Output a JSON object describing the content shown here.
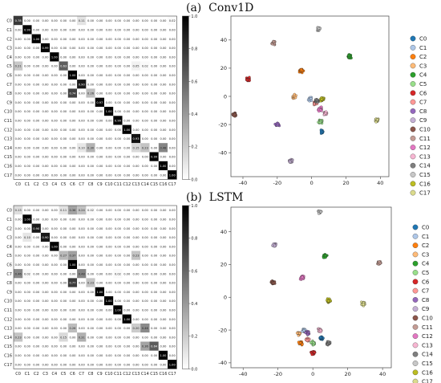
{
  "panels": {
    "a": {
      "title": "(a)  Conv1D"
    },
    "b": {
      "title": "(b)  LSTM"
    }
  },
  "classes": [
    "C0",
    "C1",
    "C2",
    "C3",
    "C4",
    "C5",
    "C6",
    "C7",
    "C8",
    "C9",
    "C10",
    "C11",
    "C12",
    "C13",
    "C14",
    "C15",
    "C16",
    "C17"
  ],
  "colors": {
    "palette": [
      "#1f77b4",
      "#aec7e8",
      "#ff7f0e",
      "#ffbb78",
      "#2ca02c",
      "#98df8a",
      "#d62728",
      "#ff9896",
      "#9467bd",
      "#c5b0d5",
      "#8c564b",
      "#c49c94",
      "#e377c2",
      "#f7b6d2",
      "#7f7f7f",
      "#c7c7c7",
      "#bcbd22",
      "#dbdb8d"
    ]
  },
  "chart_data": [
    {
      "type": "heatmap",
      "title": "",
      "xlabel": "",
      "ylabel": "",
      "row_labels": [
        "C0",
        "C1",
        "C2",
        "C3",
        "C4",
        "C5",
        "C6",
        "C7",
        "C8",
        "C9",
        "C10",
        "C11",
        "C12",
        "C13",
        "C14",
        "C15",
        "C16",
        "C17"
      ],
      "col_labels": [
        "C0",
        "C1",
        "C2",
        "C3",
        "C4",
        "C5",
        "C6",
        "C7",
        "C8",
        "C9",
        "C10",
        "C11",
        "C12",
        "C13",
        "C14",
        "C15",
        "C16",
        "C17"
      ],
      "colorbar": {
        "range": [
          0.0,
          1.0
        ],
        "ticks": [
          "0.0",
          "0.2",
          "0.4",
          "0.6",
          "0.8",
          "1.0"
        ]
      },
      "values": [
        [
          0.78,
          0.0,
          0.0,
          0.0,
          0.0,
          0.0,
          0.0,
          0.11,
          0.0,
          0.0,
          0.0,
          0.0,
          0.0,
          0.0,
          0.0,
          0.0,
          0.0,
          0.02
        ],
        [
          0.0,
          0.99,
          0.0,
          0.0,
          0.0,
          0.0,
          0.0,
          0.0,
          0.0,
          0.0,
          0.0,
          0.0,
          0.0,
          0.0,
          0.0,
          0.0,
          0.0,
          0.0
        ],
        [
          0.0,
          0.0,
          1.0,
          0.0,
          0.0,
          0.0,
          0.0,
          0.0,
          0.0,
          0.0,
          0.0,
          0.0,
          0.0,
          0.0,
          0.0,
          0.0,
          0.0,
          0.0
        ],
        [
          0.0,
          0.0,
          0.0,
          0.99,
          0.0,
          0.0,
          0.0,
          0.0,
          0.0,
          0.0,
          0.0,
          0.0,
          0.0,
          0.0,
          0.0,
          0.0,
          0.0,
          0.0
        ],
        [
          0.0,
          0.0,
          0.0,
          0.0,
          1.0,
          0.0,
          0.0,
          0.0,
          0.0,
          0.0,
          0.0,
          0.0,
          0.0,
          0.0,
          0.0,
          0.0,
          0.0,
          0.0
        ],
        [
          0.21,
          0.0,
          0.0,
          0.0,
          0.0,
          0.63,
          0.0,
          0.0,
          0.0,
          0.0,
          0.0,
          0.0,
          0.0,
          0.05,
          0.02,
          0.0,
          0.0,
          0.0
        ],
        [
          0.0,
          0.0,
          0.0,
          0.0,
          0.0,
          0.0,
          1.0,
          0.0,
          0.0,
          0.0,
          0.0,
          0.0,
          0.0,
          0.0,
          0.0,
          0.0,
          0.0,
          0.0
        ],
        [
          0.0,
          0.0,
          0.0,
          0.0,
          0.0,
          0.0,
          0.0,
          0.9,
          0.0,
          0.0,
          0.0,
          0.0,
          0.0,
          0.0,
          0.0,
          0.0,
          0.0,
          0.0
        ],
        [
          0.0,
          0.0,
          0.0,
          0.0,
          0.0,
          0.0,
          0.74,
          0.0,
          0.26,
          0.0,
          0.0,
          0.0,
          0.0,
          0.0,
          0.0,
          0.0,
          0.0,
          0.0
        ],
        [
          0.0,
          0.0,
          0.0,
          0.0,
          0.0,
          0.0,
          0.0,
          0.0,
          0.0,
          0.97,
          0.0,
          0.0,
          0.0,
          0.0,
          0.0,
          0.0,
          0.0,
          0.0
        ],
        [
          0.0,
          0.0,
          0.0,
          0.0,
          0.0,
          0.0,
          0.0,
          0.0,
          0.0,
          0.0,
          1.0,
          0.0,
          0.0,
          0.0,
          0.0,
          0.0,
          0.0,
          0.0
        ],
        [
          0.0,
          0.0,
          0.0,
          0.0,
          0.0,
          0.0,
          0.0,
          0.0,
          0.0,
          0.0,
          0.0,
          0.99,
          0.0,
          0.0,
          0.0,
          0.0,
          0.0,
          0.0
        ],
        [
          0.0,
          0.0,
          0.0,
          0.0,
          0.0,
          0.0,
          0.0,
          0.0,
          0.0,
          0.0,
          0.0,
          0.0,
          1.0,
          0.0,
          0.0,
          0.0,
          0.0,
          0.0
        ],
        [
          0.0,
          0.0,
          0.0,
          0.0,
          0.0,
          0.0,
          0.0,
          0.0,
          0.0,
          0.0,
          0.0,
          0.0,
          0.0,
          0.93,
          0.0,
          0.0,
          0.0,
          0.0
        ],
        [
          0.0,
          0.0,
          0.0,
          0.0,
          0.0,
          0.0,
          0.0,
          0.1,
          0.3,
          0.0,
          0.0,
          0.0,
          0.0,
          0.15,
          0.23,
          0.0,
          0.48,
          0.0
        ],
        [
          0.0,
          0.0,
          0.0,
          0.0,
          0.0,
          0.0,
          0.0,
          0.0,
          0.0,
          0.0,
          0.0,
          0.0,
          0.0,
          0.0,
          0.0,
          0.99,
          0.0,
          0.0
        ],
        [
          0.0,
          0.0,
          0.0,
          0.0,
          0.0,
          0.0,
          0.0,
          0.0,
          0.0,
          0.0,
          0.0,
          0.0,
          0.0,
          0.0,
          0.0,
          0.0,
          1.0,
          0.0
        ],
        [
          0.0,
          0.0,
          0.0,
          0.0,
          0.0,
          0.0,
          0.0,
          0.0,
          0.0,
          0.0,
          0.0,
          0.0,
          0.0,
          0.0,
          0.0,
          0.0,
          0.0,
          1.0
        ]
      ]
    },
    {
      "type": "scatter",
      "title": "",
      "xlabel": "",
      "ylabel": "",
      "xlim": [
        -47,
        45
      ],
      "ylim": [
        -57,
        57
      ],
      "xticks": [
        -40,
        -20,
        0,
        20,
        40
      ],
      "yticks": [
        -40,
        -20,
        0,
        20,
        40
      ],
      "legend": "right",
      "clusters": [
        {
          "name": "C0",
          "x": 6,
          "y": -25
        },
        {
          "name": "C1",
          "x": -1,
          "y": -2
        },
        {
          "name": "C2",
          "x": -6,
          "y": 18
        },
        {
          "name": "C3",
          "x": -10,
          "y": 0
        },
        {
          "name": "C4",
          "x": 22,
          "y": 28
        },
        {
          "name": "C5",
          "x": 5,
          "y": -18
        },
        {
          "name": "C6",
          "x": -37,
          "y": 12
        },
        {
          "name": "C7",
          "x": 2,
          "y": -5
        },
        {
          "name": "C8",
          "x": -20,
          "y": -20
        },
        {
          "name": "C9",
          "x": -12,
          "y": -46
        },
        {
          "name": "C10",
          "x": -45,
          "y": -13
        },
        {
          "name": "C11",
          "x": -22,
          "y": 38
        },
        {
          "name": "C12",
          "x": 5,
          "y": -9
        },
        {
          "name": "C13",
          "x": 8,
          "y": -12
        },
        {
          "name": "C14",
          "x": 3,
          "y": -3
        },
        {
          "name": "C15",
          "x": 4,
          "y": 48
        },
        {
          "name": "C16",
          "x": 6,
          "y": -2
        },
        {
          "name": "C17",
          "x": 38,
          "y": -17
        }
      ]
    },
    {
      "type": "heatmap",
      "title": "",
      "xlabel": "",
      "ylabel": "",
      "row_labels": [
        "C0",
        "C1",
        "C2",
        "C3",
        "C4",
        "C5",
        "C6",
        "C7",
        "C8",
        "C9",
        "C10",
        "C11",
        "C12",
        "C13",
        "C14",
        "C15",
        "C16",
        "C17"
      ],
      "col_labels": [
        "C0",
        "C1",
        "C2",
        "C3",
        "C4",
        "C5",
        "C6",
        "C7",
        "C8",
        "C9",
        "C10",
        "C11",
        "C12",
        "C13",
        "C14",
        "C15",
        "C16",
        "C17"
      ],
      "colorbar": {
        "range": [
          0.0,
          1.0
        ],
        "ticks": [
          "0.0",
          "0.2",
          "0.4",
          "0.6",
          "0.8",
          "1.0"
        ]
      },
      "values": [
        [
          0.13,
          0.0,
          0.0,
          0.0,
          0.0,
          0.11,
          0.36,
          0.24,
          0.02,
          0.0,
          0.0,
          0.0,
          0.0,
          0.0,
          0.0,
          0.0,
          0.0,
          0.0
        ],
        [
          0.0,
          1.0,
          0.0,
          0.0,
          0.0,
          0.0,
          0.0,
          0.0,
          0.0,
          0.0,
          0.0,
          0.0,
          0.0,
          0.0,
          0.0,
          0.0,
          0.0,
          0.0
        ],
        [
          0.0,
          0.0,
          0.9,
          0.0,
          0.0,
          0.0,
          0.0,
          0.0,
          0.0,
          0.0,
          0.0,
          0.0,
          0.0,
          0.0,
          0.0,
          0.0,
          0.0,
          0.0
        ],
        [
          0.0,
          0.1,
          0.0,
          0.9,
          0.0,
          0.0,
          0.0,
          0.0,
          0.0,
          0.0,
          0.0,
          0.0,
          0.0,
          0.0,
          0.0,
          0.0,
          0.0,
          0.0
        ],
        [
          0.0,
          0.0,
          0.0,
          0.0,
          1.0,
          0.0,
          0.0,
          0.0,
          0.0,
          0.0,
          0.0,
          0.0,
          0.0,
          0.0,
          0.0,
          0.0,
          0.0,
          0.0
        ],
        [
          0.0,
          0.0,
          0.0,
          0.0,
          0.0,
          0.27,
          0.37,
          0.0,
          0.0,
          0.0,
          0.0,
          0.0,
          0.0,
          0.23,
          0.0,
          0.0,
          0.0,
          0.0
        ],
        [
          0.0,
          0.0,
          0.0,
          0.0,
          0.0,
          0.0,
          1.0,
          0.0,
          0.0,
          0.0,
          0.0,
          0.0,
          0.0,
          0.0,
          0.0,
          0.0,
          0.0,
          0.0
        ],
        [
          0.46,
          0.02,
          0.0,
          0.0,
          0.0,
          0.0,
          0.0,
          0.48,
          0.0,
          0.0,
          0.0,
          0.02,
          0.0,
          0.0,
          0.0,
          0.0,
          0.0,
          0.0
        ],
        [
          0.0,
          0.0,
          0.0,
          0.0,
          0.0,
          0.0,
          0.77,
          0.0,
          0.23,
          0.0,
          0.0,
          0.0,
          0.0,
          0.0,
          0.0,
          0.0,
          0.0,
          0.0
        ],
        [
          0.0,
          0.0,
          0.0,
          0.0,
          0.0,
          0.0,
          0.0,
          0.0,
          0.0,
          1.0,
          0.0,
          0.0,
          0.0,
          0.0,
          0.0,
          0.0,
          0.0,
          0.0
        ],
        [
          0.0,
          0.0,
          0.0,
          0.0,
          0.0,
          0.0,
          0.0,
          0.0,
          0.0,
          0.0,
          1.0,
          0.0,
          0.0,
          0.0,
          0.0,
          0.0,
          0.0,
          0.0
        ],
        [
          0.0,
          0.0,
          0.0,
          0.0,
          0.0,
          0.0,
          0.0,
          0.0,
          0.0,
          0.0,
          0.0,
          1.0,
          0.0,
          0.0,
          0.0,
          0.0,
          0.0,
          0.0
        ],
        [
          0.0,
          0.0,
          0.0,
          0.0,
          0.0,
          0.0,
          0.0,
          0.0,
          0.0,
          0.0,
          0.0,
          0.0,
          1.0,
          0.0,
          0.0,
          0.0,
          0.0,
          0.0
        ],
        [
          0.0,
          0.0,
          0.0,
          0.0,
          0.0,
          0.0,
          0.26,
          0.0,
          0.0,
          0.0,
          0.0,
          0.0,
          0.0,
          0.2,
          0.46,
          0.0,
          0.0,
          0.0
        ],
        [
          0.23,
          0.0,
          0.0,
          0.0,
          0.0,
          0.15,
          0.0,
          0.31,
          0.0,
          0.0,
          0.0,
          0.0,
          0.0,
          0.0,
          0.0,
          0.0,
          0.0,
          0.0
        ],
        [
          0.0,
          0.0,
          0.0,
          0.0,
          0.0,
          0.0,
          0.0,
          0.0,
          0.0,
          0.0,
          0.0,
          0.0,
          0.0,
          0.0,
          0.36,
          0.64,
          0.0,
          0.0
        ],
        [
          0.0,
          0.0,
          0.0,
          0.0,
          0.0,
          0.0,
          0.0,
          0.0,
          0.0,
          0.0,
          0.0,
          0.0,
          0.0,
          0.0,
          0.0,
          0.0,
          1.0,
          0.0
        ],
        [
          0.0,
          0.0,
          0.0,
          0.0,
          0.0,
          0.0,
          0.0,
          0.0,
          0.0,
          0.0,
          0.0,
          0.0,
          0.0,
          0.0,
          0.0,
          0.0,
          0.0,
          1.0
        ]
      ]
    },
    {
      "type": "scatter",
      "title": "",
      "xlabel": "",
      "ylabel": "",
      "xlim": [
        -47,
        45
      ],
      "ylim": [
        -43,
        55
      ],
      "xticks": [
        -40,
        -20,
        0,
        20,
        40
      ],
      "yticks": [
        -40,
        -20,
        0,
        20,
        40
      ],
      "legend": "right",
      "clusters": [
        {
          "name": "C0",
          "x": 5,
          "y": -25
        },
        {
          "name": "C1",
          "x": -5,
          "y": -20
        },
        {
          "name": "C2",
          "x": -7,
          "y": -28
        },
        {
          "name": "C3",
          "x": -8,
          "y": -22
        },
        {
          "name": "C4",
          "x": 7,
          "y": 25
        },
        {
          "name": "C5",
          "x": 0,
          "y": -28
        },
        {
          "name": "C6",
          "x": 0,
          "y": -34
        },
        {
          "name": "C7",
          "x": -3,
          "y": -26
        },
        {
          "name": "C8",
          "x": -3,
          "y": -22
        },
        {
          "name": "C9",
          "x": -22,
          "y": 32
        },
        {
          "name": "C10",
          "x": -23,
          "y": 9
        },
        {
          "name": "C11",
          "x": 38,
          "y": 21
        },
        {
          "name": "C12",
          "x": -6,
          "y": 12
        },
        {
          "name": "C13",
          "x": 4,
          "y": -20
        },
        {
          "name": "C14",
          "x": 9,
          "y": -28
        },
        {
          "name": "C15",
          "x": 4,
          "y": 52
        },
        {
          "name": "C16",
          "x": 9,
          "y": -2
        },
        {
          "name": "C17",
          "x": 29,
          "y": -4
        }
      ]
    }
  ]
}
